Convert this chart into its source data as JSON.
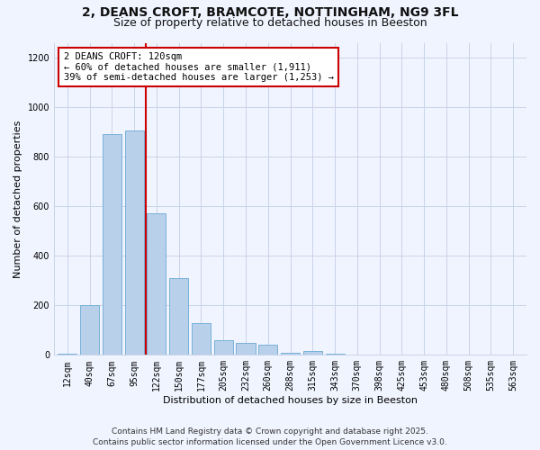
{
  "title": "2, DEANS CROFT, BRAMCOTE, NOTTINGHAM, NG9 3FL",
  "subtitle": "Size of property relative to detached houses in Beeston",
  "xlabel": "Distribution of detached houses by size in Beeston",
  "ylabel": "Number of detached properties",
  "bar_labels": [
    "12sqm",
    "40sqm",
    "67sqm",
    "95sqm",
    "122sqm",
    "150sqm",
    "177sqm",
    "205sqm",
    "232sqm",
    "260sqm",
    "288sqm",
    "315sqm",
    "343sqm",
    "370sqm",
    "398sqm",
    "425sqm",
    "453sqm",
    "480sqm",
    "508sqm",
    "535sqm",
    "563sqm"
  ],
  "bar_values": [
    5,
    200,
    890,
    905,
    570,
    310,
    130,
    60,
    50,
    40,
    10,
    15,
    5,
    2,
    1,
    1,
    0,
    0,
    0,
    0,
    0
  ],
  "bar_color": "#b8d0ea",
  "bar_edgecolor": "#6aaad4",
  "vline_x_index": 3.5,
  "property_line_label": "2 DEANS CROFT: 120sqm",
  "annotation_line1": "← 60% of detached houses are smaller (1,911)",
  "annotation_line2": "39% of semi-detached houses are larger (1,253) →",
  "annotation_box_facecolor": "#ffffff",
  "annotation_box_edgecolor": "#cc0000",
  "vline_color": "#cc0000",
  "ylim": [
    0,
    1260
  ],
  "yticks": [
    0,
    200,
    400,
    600,
    800,
    1000,
    1200
  ],
  "footer1": "Contains HM Land Registry data © Crown copyright and database right 2025.",
  "footer2": "Contains public sector information licensed under the Open Government Licence v3.0.",
  "bg_color": "#f0f4ff",
  "grid_color": "#c8d4e8",
  "title_fontsize": 10,
  "subtitle_fontsize": 9,
  "axis_label_fontsize": 8,
  "tick_fontsize": 7,
  "annotation_fontsize": 7.5,
  "footer_fontsize": 6.5
}
